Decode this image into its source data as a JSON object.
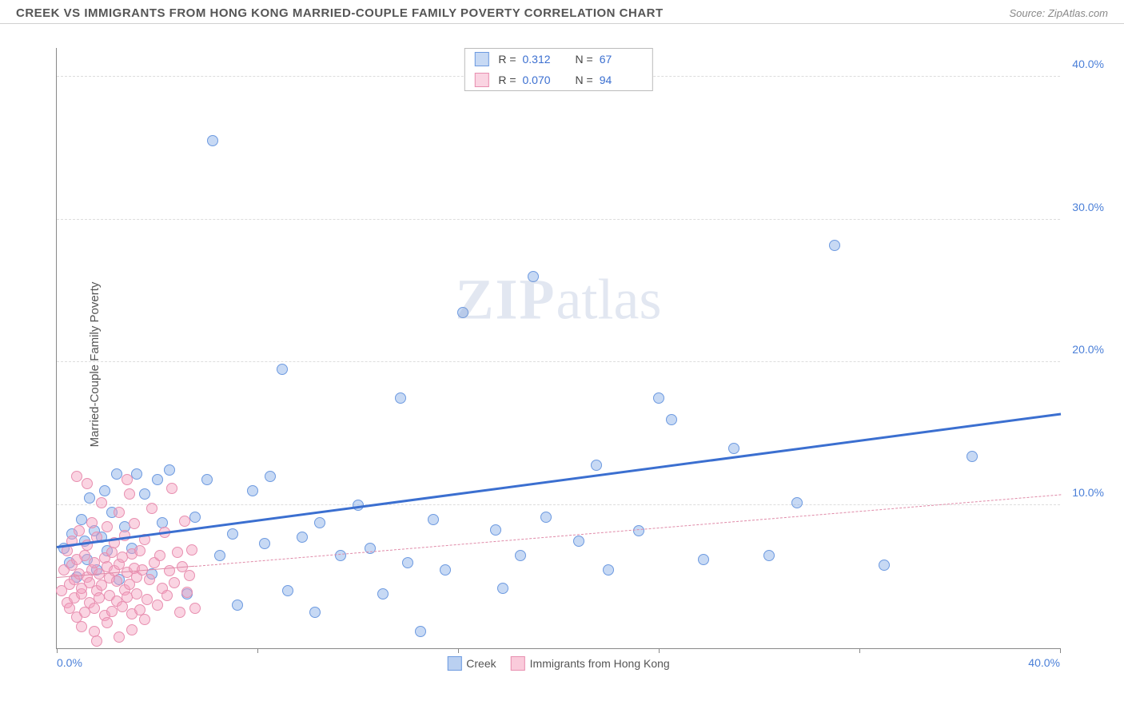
{
  "header": {
    "title": "CREEK VS IMMIGRANTS FROM HONG KONG MARRIED-COUPLE FAMILY POVERTY CORRELATION CHART",
    "source": "Source: ZipAtlas.com"
  },
  "ylabel": "Married-Couple Family Poverty",
  "watermark": {
    "bold": "ZIP",
    "rest": "atlas"
  },
  "chart": {
    "type": "scatter",
    "xlim": [
      0,
      40
    ],
    "ylim": [
      0,
      42
    ],
    "xticks": [
      0,
      8,
      16,
      24,
      32,
      40
    ],
    "xtick_labels": [
      "0.0%",
      "",
      "",
      "",
      "",
      "40.0%"
    ],
    "yticks": [
      10,
      20,
      30,
      40
    ],
    "ytick_labels": [
      "10.0%",
      "20.0%",
      "30.0%",
      "40.0%"
    ],
    "background_color": "#ffffff",
    "grid_color": "#dddddd",
    "axis_color": "#888888",
    "marker_radius": 7,
    "marker_border_width": 1.2,
    "series": [
      {
        "name": "Creek",
        "fill": "rgba(130,170,230,0.45)",
        "stroke": "#6d9ae0",
        "R": "0.312",
        "N": "67",
        "trend": {
          "x1": 0,
          "y1": 7.2,
          "x2": 40,
          "y2": 16.5,
          "color": "#3b6fd0",
          "width": 3,
          "dash": "solid"
        },
        "points": [
          [
            0.3,
            7
          ],
          [
            0.5,
            6
          ],
          [
            0.6,
            8
          ],
          [
            0.8,
            5
          ],
          [
            1.0,
            9
          ],
          [
            1.1,
            7.5
          ],
          [
            1.2,
            6.2
          ],
          [
            1.3,
            10.5
          ],
          [
            1.5,
            8.2
          ],
          [
            1.6,
            5.5
          ],
          [
            1.8,
            7.8
          ],
          [
            1.9,
            11
          ],
          [
            2.0,
            6.8
          ],
          [
            2.2,
            9.5
          ],
          [
            2.4,
            12.2
          ],
          [
            2.5,
            4.8
          ],
          [
            2.7,
            8.5
          ],
          [
            3.0,
            7
          ],
          [
            3.2,
            12.2
          ],
          [
            3.5,
            10.8
          ],
          [
            3.8,
            5.2
          ],
          [
            4.0,
            11.8
          ],
          [
            4.2,
            8.8
          ],
          [
            4.5,
            12.5
          ],
          [
            5.2,
            3.8
          ],
          [
            5.5,
            9.2
          ],
          [
            6.0,
            11.8
          ],
          [
            6.2,
            35.5
          ],
          [
            6.5,
            6.5
          ],
          [
            7.0,
            8
          ],
          [
            7.2,
            3
          ],
          [
            7.8,
            11
          ],
          [
            8.3,
            7.3
          ],
          [
            8.5,
            12
          ],
          [
            9.0,
            19.5
          ],
          [
            9.2,
            4
          ],
          [
            9.8,
            7.8
          ],
          [
            10.3,
            2.5
          ],
          [
            10.5,
            8.8
          ],
          [
            11.3,
            6.5
          ],
          [
            12.0,
            10
          ],
          [
            12.5,
            7
          ],
          [
            13.7,
            17.5
          ],
          [
            14.0,
            6
          ],
          [
            14.5,
            1.2
          ],
          [
            15.0,
            9
          ],
          [
            15.5,
            5.5
          ],
          [
            16.2,
            23.5
          ],
          [
            17.5,
            8.3
          ],
          [
            17.8,
            4.2
          ],
          [
            19.0,
            26
          ],
          [
            19.5,
            9.2
          ],
          [
            20.8,
            7.5
          ],
          [
            21.5,
            12.8
          ],
          [
            23.2,
            8.2
          ],
          [
            24.0,
            17.5
          ],
          [
            24.5,
            16
          ],
          [
            25.8,
            6.2
          ],
          [
            27.0,
            14
          ],
          [
            28.4,
            6.5
          ],
          [
            31.0,
            28.2
          ],
          [
            33.0,
            5.8
          ],
          [
            36.5,
            13.4
          ],
          [
            29.5,
            10.2
          ],
          [
            18.5,
            6.5
          ],
          [
            13.0,
            3.8
          ],
          [
            22.0,
            5.5
          ]
        ]
      },
      {
        "name": "Immigrants from Hong Kong",
        "fill": "rgba(245,160,190,0.45)",
        "stroke": "#e88fb0",
        "R": "0.070",
        "N": "94",
        "trend": {
          "x1": 0,
          "y1": 5.0,
          "x2": 40,
          "y2": 10.8,
          "color": "#e08aa8",
          "width": 1.5,
          "dash": "dashed"
        },
        "trend_solid_until_x": 5.5,
        "points": [
          [
            0.2,
            4
          ],
          [
            0.3,
            5.5
          ],
          [
            0.4,
            3.2
          ],
          [
            0.4,
            6.8
          ],
          [
            0.5,
            4.5
          ],
          [
            0.5,
            2.8
          ],
          [
            0.6,
            5.8
          ],
          [
            0.6,
            7.5
          ],
          [
            0.7,
            3.5
          ],
          [
            0.7,
            4.8
          ],
          [
            0.8,
            6.2
          ],
          [
            0.8,
            2.2
          ],
          [
            0.9,
            5.2
          ],
          [
            0.9,
            8.2
          ],
          [
            1.0,
            3.8
          ],
          [
            1.0,
            4.2
          ],
          [
            1.1,
            6.5
          ],
          [
            1.1,
            2.5
          ],
          [
            1.2,
            5
          ],
          [
            1.2,
            7.2
          ],
          [
            1.3,
            3.2
          ],
          [
            1.3,
            4.6
          ],
          [
            1.4,
            8.8
          ],
          [
            1.4,
            5.5
          ],
          [
            1.5,
            2.8
          ],
          [
            1.5,
            6
          ],
          [
            1.6,
            4
          ],
          [
            1.6,
            7.8
          ],
          [
            1.7,
            3.5
          ],
          [
            1.7,
            5.2
          ],
          [
            1.8,
            10.2
          ],
          [
            1.8,
            4.4
          ],
          [
            1.9,
            6.3
          ],
          [
            1.9,
            2.3
          ],
          [
            2.0,
            5.7
          ],
          [
            2.0,
            8.5
          ],
          [
            2.1,
            3.7
          ],
          [
            2.1,
            4.9
          ],
          [
            2.2,
            6.7
          ],
          [
            2.2,
            2.6
          ],
          [
            2.3,
            5.4
          ],
          [
            2.3,
            7.4
          ],
          [
            2.4,
            3.3
          ],
          [
            2.4,
            4.7
          ],
          [
            2.5,
            9.5
          ],
          [
            2.5,
            5.9
          ],
          [
            2.6,
            2.9
          ],
          [
            2.6,
            6.4
          ],
          [
            2.7,
            4.1
          ],
          [
            2.7,
            7.9
          ],
          [
            2.8,
            3.6
          ],
          [
            2.8,
            5.3
          ],
          [
            2.9,
            10.8
          ],
          [
            2.9,
            4.5
          ],
          [
            3.0,
            6.6
          ],
          [
            3.0,
            2.4
          ],
          [
            3.1,
            5.6
          ],
          [
            3.1,
            8.7
          ],
          [
            3.2,
            3.8
          ],
          [
            3.2,
            5
          ],
          [
            3.3,
            6.8
          ],
          [
            3.3,
            2.7
          ],
          [
            3.4,
            5.5
          ],
          [
            3.5,
            7.6
          ],
          [
            3.6,
            3.4
          ],
          [
            3.7,
            4.8
          ],
          [
            3.8,
            9.8
          ],
          [
            3.9,
            6
          ],
          [
            4.0,
            3
          ],
          [
            4.1,
            6.5
          ],
          [
            4.2,
            4.2
          ],
          [
            4.3,
            8.1
          ],
          [
            4.4,
            3.7
          ],
          [
            4.5,
            5.4
          ],
          [
            4.6,
            11.2
          ],
          [
            4.7,
            4.6
          ],
          [
            4.8,
            6.7
          ],
          [
            4.9,
            2.5
          ],
          [
            5.0,
            5.7
          ],
          [
            5.1,
            8.9
          ],
          [
            5.2,
            3.9
          ],
          [
            5.3,
            5.1
          ],
          [
            5.4,
            6.9
          ],
          [
            5.5,
            2.8
          ],
          [
            1.0,
            1.5
          ],
          [
            1.5,
            1.2
          ],
          [
            2.0,
            1.8
          ],
          [
            2.5,
            0.8
          ],
          [
            3.0,
            1.3
          ],
          [
            3.5,
            2.0
          ],
          [
            0.8,
            12.0
          ],
          [
            1.2,
            11.5
          ],
          [
            2.8,
            11.8
          ],
          [
            1.6,
            0.5
          ]
        ]
      }
    ]
  },
  "legend_bottom": [
    {
      "label": "Creek",
      "fill": "rgba(130,170,230,0.55)",
      "stroke": "#6d9ae0"
    },
    {
      "label": "Immigrants from Hong Kong",
      "fill": "rgba(245,160,190,0.55)",
      "stroke": "#e88fb0"
    }
  ]
}
